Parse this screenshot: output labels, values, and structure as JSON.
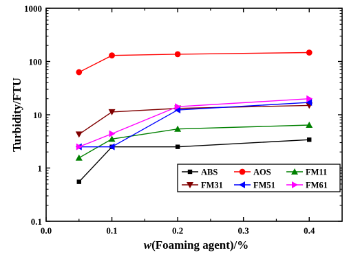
{
  "chart_data": {
    "type": "line",
    "xlabel_italic": "w",
    "xlabel_rest": "(Foaming agent)/%",
    "ylabel": "Turbidity/FTU",
    "x_scale": "linear",
    "y_scale": "log",
    "xlim": [
      0.0,
      0.45
    ],
    "ylim": [
      0.1,
      1000
    ],
    "x_ticks": [
      "0.0",
      "0.1",
      "0.2",
      "0.3",
      "0.4"
    ],
    "y_ticks": [
      "0.1",
      "1",
      "10",
      "100",
      "1000"
    ],
    "legend_position": "bottom-right",
    "grid": false,
    "x": [
      0.05,
      0.1,
      0.2,
      0.4
    ],
    "series": [
      {
        "name": "ABS",
        "color": "#000000",
        "marker": "square",
        "values": [
          0.55,
          2.5,
          2.5,
          3.4
        ]
      },
      {
        "name": "AOS",
        "color": "#ff0000",
        "marker": "circle",
        "values": [
          63,
          130,
          137,
          147
        ]
      },
      {
        "name": "FM11",
        "color": "#008000",
        "marker": "triangle-up",
        "values": [
          1.55,
          3.5,
          5.4,
          6.4
        ]
      },
      {
        "name": "FM31",
        "color": "#800000",
        "marker": "triangle-down",
        "values": [
          4.3,
          11.3,
          13.2,
          15.0
        ]
      },
      {
        "name": "FM51",
        "color": "#0000ff",
        "marker": "triangle-left",
        "values": [
          2.5,
          2.5,
          12.3,
          17.0
        ]
      },
      {
        "name": "FM61",
        "color": "#ff00ff",
        "marker": "triangle-right",
        "values": [
          2.5,
          4.4,
          14.2,
          20.0
        ]
      }
    ]
  }
}
